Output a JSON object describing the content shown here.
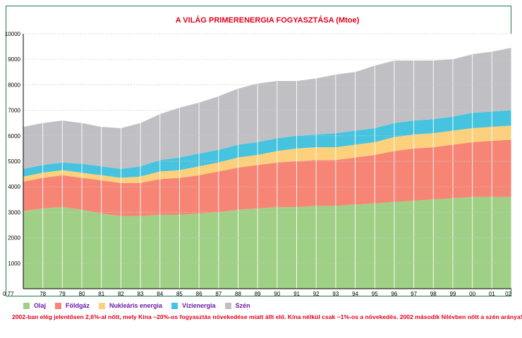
{
  "chart_data": {
    "type": "area",
    "stacked": true,
    "title": "A VILÁG PRIMERENERGIA FOGYASZTÁSA (Mtoe)",
    "xlabel": "",
    "ylabel": "",
    "x": [
      "0 77",
      "78",
      "79",
      "80",
      "81",
      "82",
      "83",
      "84",
      "85",
      "86",
      "87",
      "88",
      "89",
      "90",
      "91",
      "92",
      "93",
      "94",
      "95",
      "96",
      "97",
      "98",
      "99",
      "00",
      "01",
      "02"
    ],
    "ylim": [
      0,
      10000
    ],
    "yticks": [
      "1000",
      "2000",
      "3000",
      "4000",
      "5000",
      "6000",
      "7000",
      "8000",
      "9000",
      "10000"
    ],
    "grid": true,
    "legend_position": "bottom",
    "series": [
      {
        "name": "Olaj",
        "color": "#9fd086",
        "values": [
          3050,
          3150,
          3200,
          3100,
          2950,
          2850,
          2850,
          2900,
          2900,
          2950,
          3000,
          3100,
          3150,
          3200,
          3200,
          3250,
          3250,
          3300,
          3350,
          3400,
          3450,
          3500,
          3550,
          3600,
          3600,
          3600
        ]
      },
      {
        "name": "Földgáz",
        "color": "#f78576",
        "values": [
          1150,
          1200,
          1250,
          1250,
          1300,
          1300,
          1300,
          1400,
          1450,
          1500,
          1600,
          1650,
          1700,
          1750,
          1800,
          1800,
          1800,
          1850,
          1900,
          2000,
          2050,
          2050,
          2100,
          2150,
          2200,
          2250
        ]
      },
      {
        "name": "Nukleáris energia",
        "color": "#fdd17c",
        "values": [
          200,
          200,
          200,
          200,
          200,
          200,
          250,
          300,
          300,
          350,
          350,
          400,
          400,
          450,
          500,
          500,
          500,
          500,
          500,
          550,
          550,
          550,
          550,
          550,
          550,
          550
        ]
      },
      {
        "name": "Vízienergia",
        "color": "#46c3df",
        "values": [
          300,
          300,
          300,
          350,
          350,
          350,
          400,
          450,
          500,
          500,
          500,
          500,
          500,
          500,
          500,
          500,
          550,
          550,
          550,
          550,
          550,
          550,
          550,
          600,
          600,
          600
        ]
      },
      {
        "name": "Szén",
        "color": "#c0c0c4",
        "values": [
          1650,
          1650,
          1650,
          1600,
          1550,
          1600,
          1700,
          1800,
          1950,
          2000,
          2100,
          2200,
          2300,
          2250,
          2150,
          2200,
          2300,
          2300,
          2450,
          2450,
          2350,
          2300,
          2250,
          2300,
          2350,
          2450
        ]
      }
    ],
    "note": "2002-ban elég jelentősen 2,6%-al nőtt, mely Kína ~20%-os fogyasztás növekedése miatt állt elő. Kína nélkül csak ~1%-os a növekedés. 2002 második félévben nőtt a szén aránya!"
  }
}
